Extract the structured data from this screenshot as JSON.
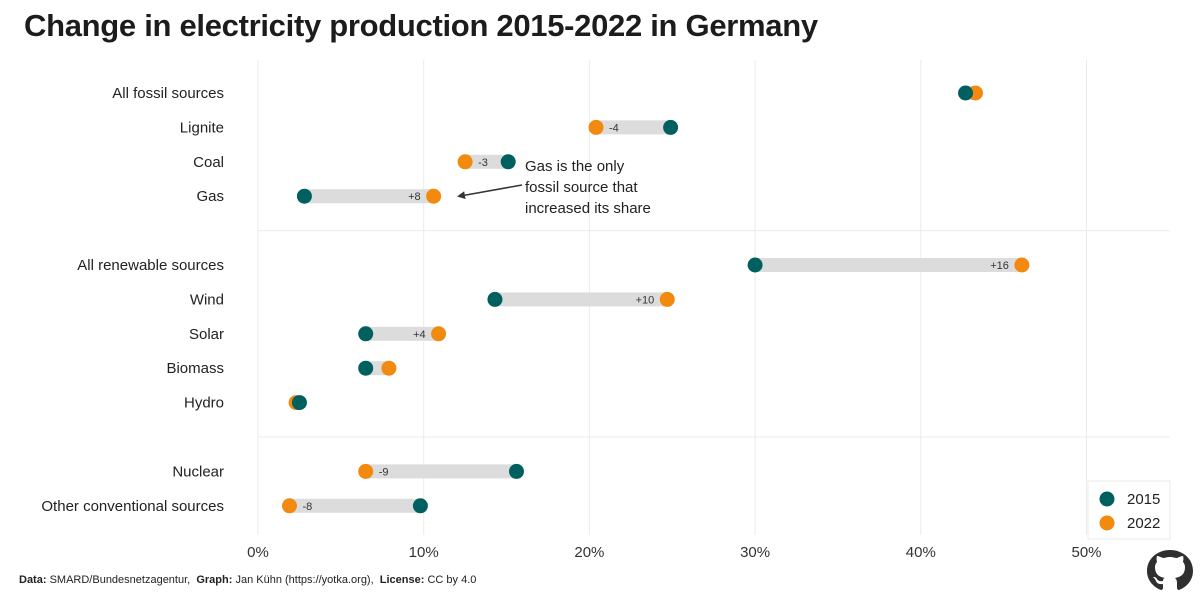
{
  "title": "Change in electricity production 2015-2022 in Germany",
  "footer": {
    "data_label": "Data:",
    "data_value": "SMARD/Bundesnetzagentur,",
    "graph_label": "Graph:",
    "graph_value": "Jan Kühn (https://yotka.org),",
    "license_label": "License:",
    "license_value": "CC by 4.0"
  },
  "logo_icon": "octocat-silhouette-icon",
  "colors": {
    "series_2015": "#00605f",
    "series_2022": "#f28a0f",
    "range_bar": "#dcdcdc",
    "grid": "#ebebeb"
  },
  "annotation": {
    "lines": [
      "Gas is the only",
      "fossil source that",
      "increased its share"
    ],
    "points_to": "Gas"
  },
  "chart_data": {
    "type": "dumbbell",
    "title": "Change in electricity production 2015-2022 in Germany",
    "xlabel": "",
    "ylabel": "",
    "xlim": [
      0,
      53
    ],
    "x_ticks": [
      0,
      10,
      20,
      30,
      40,
      50
    ],
    "x_tick_labels": [
      "0%",
      "10%",
      "20%",
      "30%",
      "40%",
      "50%"
    ],
    "grid": true,
    "legend": {
      "position": "bottom-right",
      "entries": [
        "2015",
        "2022"
      ]
    },
    "groups": [
      {
        "categories": [
          {
            "label": "All fossil sources",
            "v2015": 42.7,
            "v2022": 43.3,
            "change": ""
          },
          {
            "label": "Lignite",
            "v2015": 24.9,
            "v2022": 20.4,
            "change": "-4"
          },
          {
            "label": "Coal",
            "v2015": 15.1,
            "v2022": 12.5,
            "change": "-3"
          },
          {
            "label": "Gas",
            "v2015": 2.8,
            "v2022": 10.6,
            "change": "+8"
          }
        ]
      },
      {
        "categories": [
          {
            "label": "All renewable sources",
            "v2015": 30.0,
            "v2022": 46.1,
            "change": "+16"
          },
          {
            "label": "Wind",
            "v2015": 14.3,
            "v2022": 24.7,
            "change": "+10"
          },
          {
            "label": "Solar",
            "v2015": 6.5,
            "v2022": 10.9,
            "change": "+4"
          },
          {
            "label": "Biomass",
            "v2015": 6.5,
            "v2022": 7.9,
            "change": ""
          },
          {
            "label": "Hydro",
            "v2015": 2.5,
            "v2022": 2.3,
            "change": ""
          }
        ]
      },
      {
        "categories": [
          {
            "label": "Nuclear",
            "v2015": 15.6,
            "v2022": 6.5,
            "change": "-9"
          },
          {
            "label": "Other conventional sources",
            "v2015": 9.8,
            "v2022": 1.9,
            "change": "-8"
          }
        ]
      }
    ]
  }
}
